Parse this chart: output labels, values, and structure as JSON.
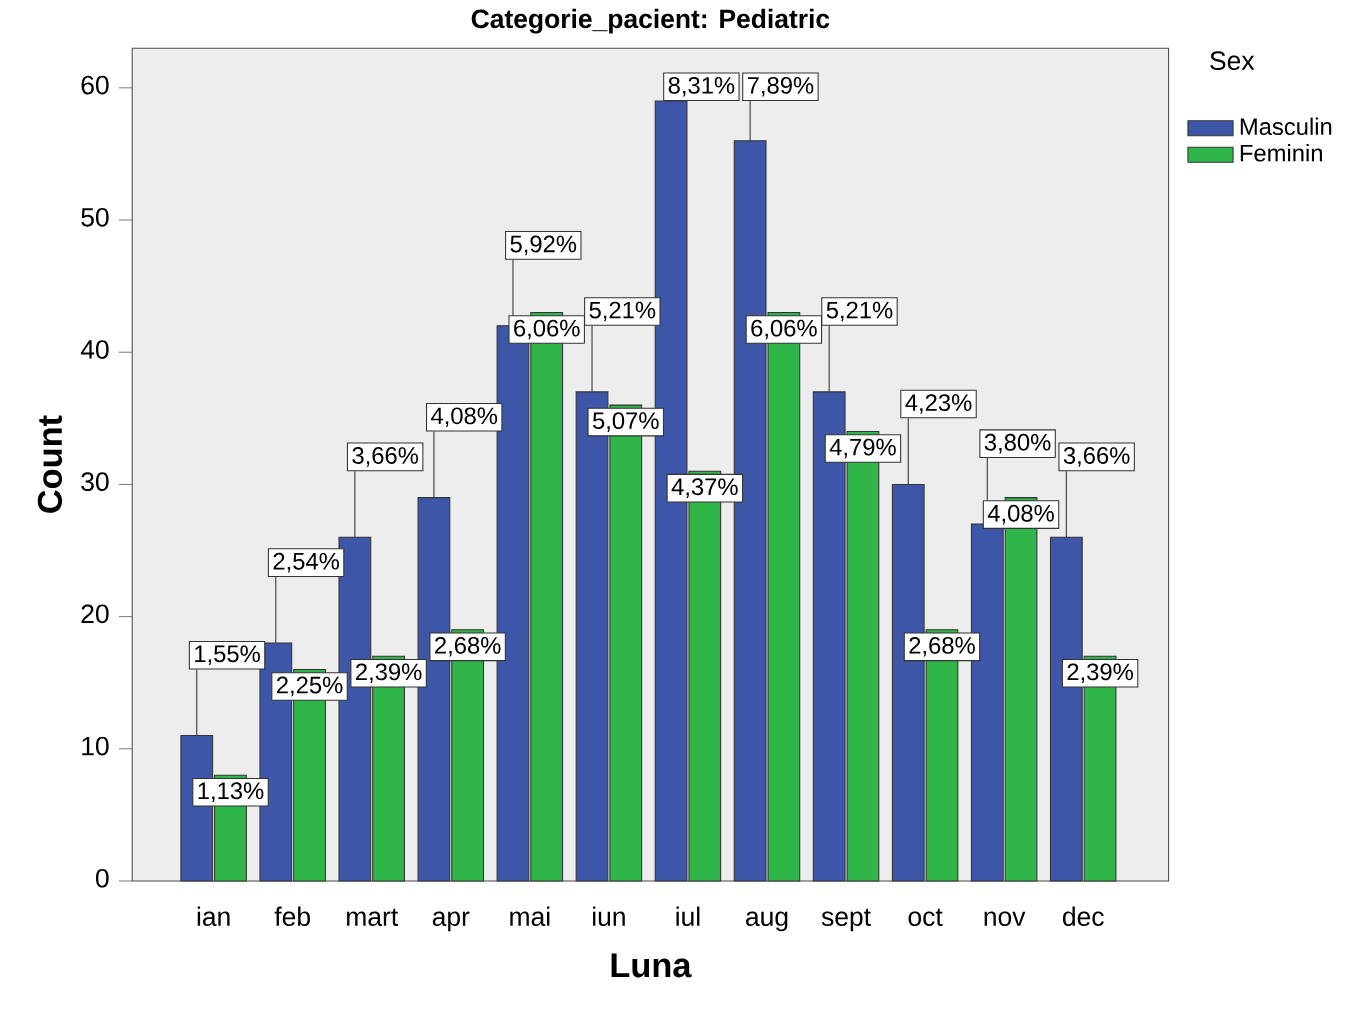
{
  "chart_data": {
    "type": "bar",
    "title": "Categorie_pacient: Pediatric",
    "xlabel": "Luna",
    "ylabel": "Count",
    "legend_title": "Sex",
    "legend": "top right",
    "grid": false,
    "categories": [
      "ian",
      "feb",
      "mart",
      "apr",
      "mai",
      "iun",
      "iul",
      "aug",
      "sept",
      "oct",
      "nov",
      "dec"
    ],
    "ylim": [
      0,
      63
    ],
    "yticks": [
      0,
      10,
      20,
      30,
      40,
      50,
      60
    ],
    "series": [
      {
        "name": "Masculin",
        "color": "#3e56a8",
        "values": [
          11,
          18,
          26,
          29,
          42,
          37,
          59,
          56,
          37,
          30,
          27,
          26
        ]
      },
      {
        "name": "Feminin",
        "color": "#2fb548",
        "values": [
          8,
          16,
          17,
          19,
          43,
          36,
          31,
          43,
          34,
          19,
          29,
          17
        ]
      }
    ],
    "annotations": [
      {
        "text": "1,55%",
        "x": "ian",
        "y": 11
      },
      {
        "text": "2,54%",
        "x": "feb",
        "y": 18
      },
      {
        "text": "3,66%",
        "x": "mart",
        "y": 26
      },
      {
        "text": "4,08%",
        "x": "apr",
        "y": 29
      },
      {
        "text": "5,92%",
        "x": "mai",
        "y": 42
      },
      {
        "text": "5,21%",
        "x": "iun",
        "y": 37
      },
      {
        "text": "8,31%",
        "x": "iul",
        "y": 59
      },
      {
        "text": "7,89%",
        "x": "aug",
        "y": 56
      },
      {
        "text": "5,21%",
        "x": "sept",
        "y": 37
      },
      {
        "text": "4,23%",
        "x": "oct",
        "y": 30
      },
      {
        "text": "3,80%",
        "x": "nov",
        "y": 27
      },
      {
        "text": "3,66%",
        "x": "dec",
        "y": 26
      },
      {
        "text": "1,13%",
        "x": "ian",
        "y": 8
      },
      {
        "text": "2,25%",
        "x": "feb",
        "y": 16
      },
      {
        "text": "2,39%",
        "x": "mart",
        "y": 17
      },
      {
        "text": "2,68%",
        "x": "apr",
        "y": 19
      },
      {
        "text": "6,06%",
        "x": "mai",
        "y": 43
      },
      {
        "text": "5,07%",
        "x": "iun",
        "y": 36
      },
      {
        "text": "4,37%",
        "x": "iul",
        "y": 31
      },
      {
        "text": "6,06%",
        "x": "aug",
        "y": 43
      },
      {
        "text": "4,79%",
        "x": "sept",
        "y": 34
      },
      {
        "text": "2,68%",
        "x": "oct",
        "y": 19
      },
      {
        "text": "4,08%",
        "x": "nov",
        "y": 29
      },
      {
        "text": "2,39%",
        "x": "dec",
        "y": 17
      }
    ]
  }
}
